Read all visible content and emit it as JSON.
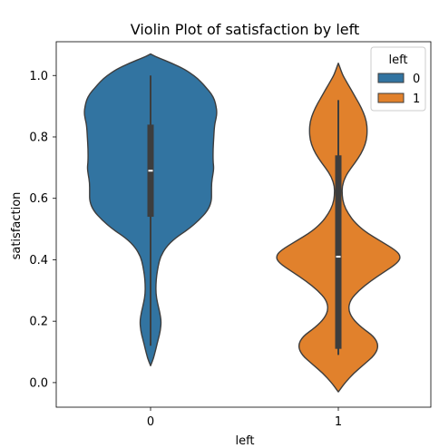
{
  "chart_data": {
    "type": "violin",
    "title": "Violin Plot of satisfaction by left",
    "xlabel": "left",
    "ylabel": "satisfaction",
    "categories": [
      "0",
      "1"
    ],
    "ylim": [
      -0.08,
      1.11
    ],
    "yticks": [
      "0.0",
      "0.2",
      "0.4",
      "0.6",
      "0.8",
      "1.0"
    ],
    "legend": {
      "title": "left",
      "placement": "top-right",
      "entries": [
        "0",
        "1"
      ]
    },
    "series": [
      {
        "name": "0",
        "color": "#3274a1",
        "min": 0.12,
        "q1": 0.54,
        "median": 0.69,
        "q3": 0.84,
        "max": 1.0,
        "density": [
          [
            1.07,
            0.0
          ],
          [
            1.06,
            0.08
          ],
          [
            1.04,
            0.28
          ],
          [
            1.02,
            0.45
          ],
          [
            1.0,
            0.57
          ],
          [
            0.98,
            0.66
          ],
          [
            0.96,
            0.73
          ],
          [
            0.94,
            0.8
          ],
          [
            0.92,
            0.84
          ],
          [
            0.9,
            0.86
          ],
          [
            0.88,
            0.87
          ],
          [
            0.86,
            0.86
          ],
          [
            0.84,
            0.84
          ],
          [
            0.8,
            0.83
          ],
          [
            0.76,
            0.82
          ],
          [
            0.72,
            0.82
          ],
          [
            0.7,
            0.83
          ],
          [
            0.68,
            0.82
          ],
          [
            0.65,
            0.8
          ],
          [
            0.62,
            0.8
          ],
          [
            0.59,
            0.8
          ],
          [
            0.56,
            0.75
          ],
          [
            0.53,
            0.64
          ],
          [
            0.5,
            0.5
          ],
          [
            0.47,
            0.32
          ],
          [
            0.44,
            0.2
          ],
          [
            0.41,
            0.13
          ],
          [
            0.38,
            0.1
          ],
          [
            0.35,
            0.08
          ],
          [
            0.32,
            0.07
          ],
          [
            0.29,
            0.07
          ],
          [
            0.26,
            0.09
          ],
          [
            0.23,
            0.12
          ],
          [
            0.2,
            0.14
          ],
          [
            0.17,
            0.13
          ],
          [
            0.14,
            0.1
          ],
          [
            0.11,
            0.07
          ],
          [
            0.08,
            0.04
          ],
          [
            0.055,
            0.0
          ]
        ]
      },
      {
        "name": "1",
        "color": "#e1812c",
        "min": 0.09,
        "q1": 0.11,
        "median": 0.41,
        "q3": 0.74,
        "max": 0.92,
        "density": [
          [
            1.04,
            0.0
          ],
          [
            1.02,
            0.03
          ],
          [
            1.0,
            0.06
          ],
          [
            0.97,
            0.13
          ],
          [
            0.94,
            0.2
          ],
          [
            0.91,
            0.27
          ],
          [
            0.88,
            0.33
          ],
          [
            0.85,
            0.37
          ],
          [
            0.82,
            0.38
          ],
          [
            0.79,
            0.37
          ],
          [
            0.76,
            0.33
          ],
          [
            0.73,
            0.26
          ],
          [
            0.7,
            0.17
          ],
          [
            0.67,
            0.09
          ],
          [
            0.64,
            0.05
          ],
          [
            0.61,
            0.05
          ],
          [
            0.58,
            0.07
          ],
          [
            0.55,
            0.13
          ],
          [
            0.52,
            0.22
          ],
          [
            0.49,
            0.36
          ],
          [
            0.46,
            0.56
          ],
          [
            0.43,
            0.76
          ],
          [
            0.41,
            0.82
          ],
          [
            0.39,
            0.78
          ],
          [
            0.36,
            0.6
          ],
          [
            0.33,
            0.42
          ],
          [
            0.3,
            0.27
          ],
          [
            0.27,
            0.16
          ],
          [
            0.24,
            0.13
          ],
          [
            0.21,
            0.18
          ],
          [
            0.18,
            0.3
          ],
          [
            0.15,
            0.47
          ],
          [
            0.12,
            0.53
          ],
          [
            0.09,
            0.48
          ],
          [
            0.06,
            0.34
          ],
          [
            0.03,
            0.2
          ],
          [
            0.0,
            0.09
          ],
          [
            -0.02,
            0.03
          ],
          [
            -0.03,
            0.0
          ]
        ]
      }
    ]
  }
}
